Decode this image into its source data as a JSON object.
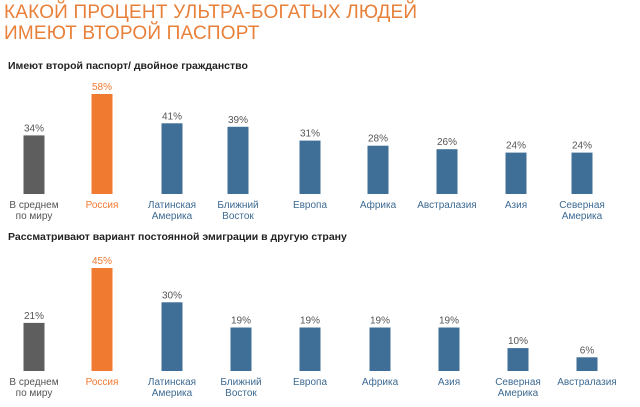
{
  "title_lines": [
    "КАКОЙ ПРОЦЕНТ УЛЬТРА-БОГАТЫХ ЛЮДЕЙ",
    "ИМЕЮТ ВТОРОЙ ПАСПОРТ"
  ],
  "colors": {
    "title": "#e8803a",
    "average": "#5e5e5e",
    "highlight": "#f07a30",
    "regions": "#3f6f96",
    "category_text": "#3d6a92",
    "subtitle": "#222222"
  },
  "chart_data": [
    {
      "type": "bar",
      "title": "Имеют второй паспорт/ двойное гражданство",
      "categories": [
        "В среднем по миру",
        "Россия",
        "Латинская Америка",
        "Ближний Восток",
        "Европа",
        "Африка",
        "Австралазия",
        "Азия",
        "Северная Америка"
      ],
      "category_lines": [
        [
          "В среднем",
          "по миру"
        ],
        [
          "Россия"
        ],
        [
          "Латинская",
          "Америка"
        ],
        [
          "Ближний",
          "Восток"
        ],
        [
          "Европа"
        ],
        [
          "Африка"
        ],
        [
          "Австралазия"
        ],
        [
          "Азия"
        ],
        [
          "Северная",
          "Америка"
        ]
      ],
      "values": [
        34,
        58,
        41,
        39,
        31,
        28,
        26,
        24,
        24
      ],
      "value_labels": [
        "34%",
        "58%",
        "41%",
        "39%",
        "31%",
        "28%",
        "26%",
        "24%",
        "24%"
      ],
      "bar_colors": [
        "average",
        "highlight",
        "regions",
        "regions",
        "regions",
        "regions",
        "regions",
        "regions",
        "regions"
      ],
      "unit": "%",
      "ylim": [
        0,
        58
      ],
      "grid": false,
      "legend": "none"
    },
    {
      "type": "bar",
      "title": "Рассматривают вариант постоянной эмиграции в другую страну",
      "categories": [
        "В среднем по миру",
        "Россия",
        "Латинская Америка",
        "Ближний Восток",
        "Европа",
        "Африка",
        "Азия",
        "Северная Америка",
        "Австралазия"
      ],
      "category_lines": [
        [
          "В среднем",
          "по миру"
        ],
        [
          "Россия"
        ],
        [
          "Латинская",
          "Америка"
        ],
        [
          "Ближний",
          "Восток"
        ],
        [
          "Европа"
        ],
        [
          "Африка"
        ],
        [
          "Азия"
        ],
        [
          "Северная",
          "Америка"
        ],
        [
          "Австралазия"
        ]
      ],
      "values": [
        21,
        45,
        30,
        19,
        19,
        19,
        19,
        10,
        6
      ],
      "value_labels": [
        "21%",
        "45%",
        "30%",
        "19%",
        "19%",
        "19%",
        "19%",
        "10%",
        "6%"
      ],
      "bar_colors": [
        "average",
        "highlight",
        "regions",
        "regions",
        "regions",
        "regions",
        "regions",
        "regions",
        "regions"
      ],
      "unit": "%",
      "ylim": [
        0,
        45
      ],
      "grid": false,
      "legend": "none"
    }
  ]
}
